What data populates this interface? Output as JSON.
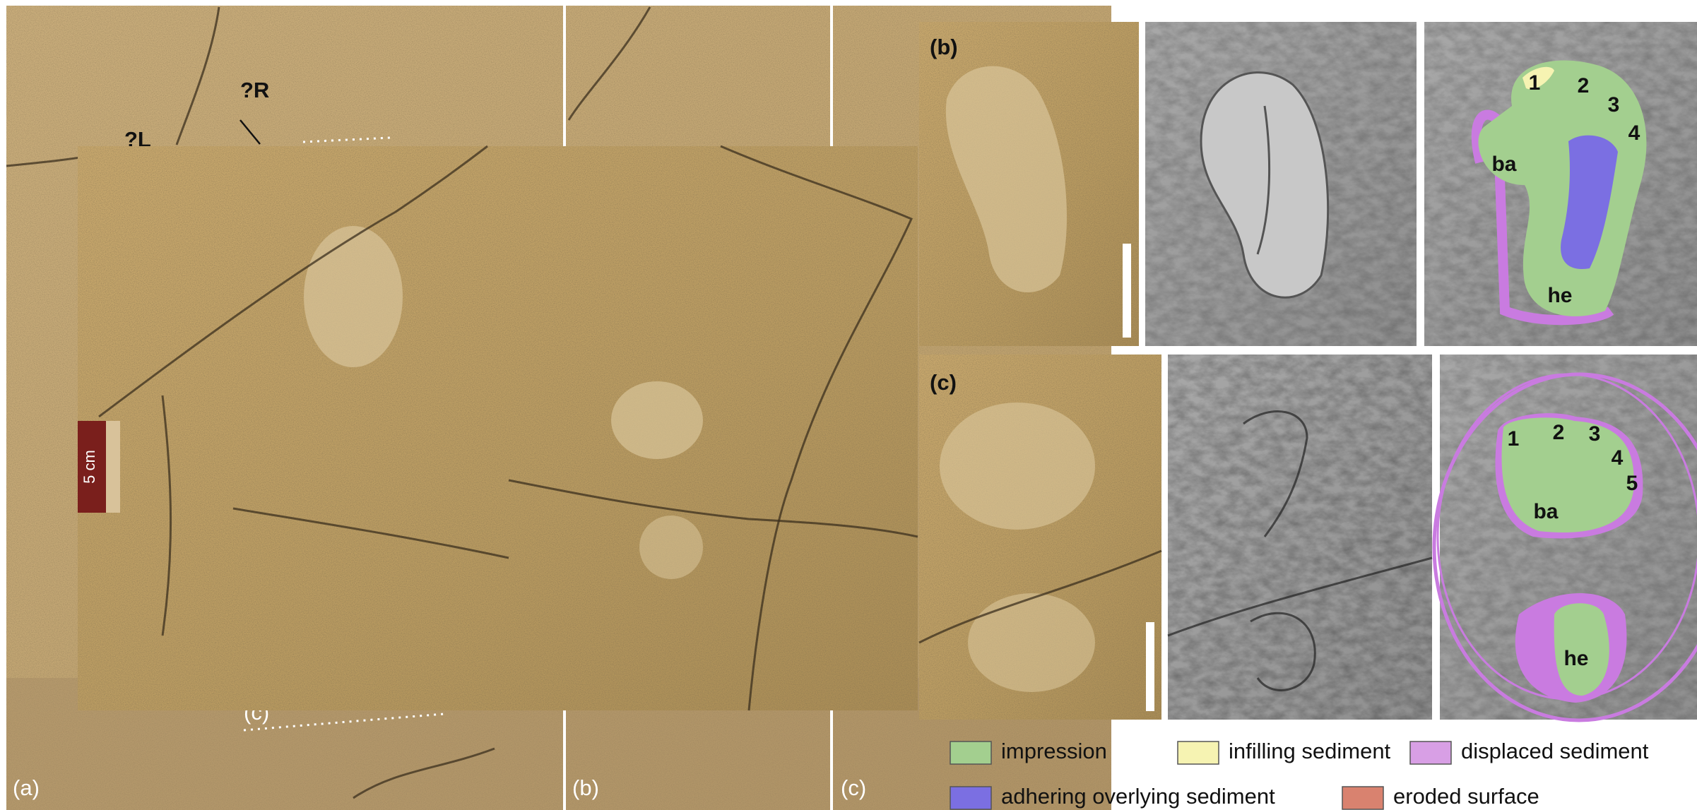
{
  "panel_a": {
    "annotations": {
      "right": "?R",
      "left": "?L",
      "cut": "(c)"
    },
    "scale_bar": "5 cm"
  },
  "background_labels": [
    "(a)",
    "(b)",
    "(c)"
  ],
  "panel_b": {
    "label": "(b)",
    "labels": [
      "1",
      "2",
      "3",
      "4",
      "ba",
      "he"
    ]
  },
  "panel_c": {
    "label": "(c)",
    "labels": [
      "1",
      "2",
      "3",
      "4",
      "5",
      "ba",
      "he"
    ]
  },
  "legend": [
    {
      "label": "impression",
      "color": "#a3cf8f"
    },
    {
      "label": "infilling sediment",
      "color": "#f6f3b2"
    },
    {
      "label": "displaced sediment",
      "color": "#d89fe5"
    },
    {
      "label": "adhering overlying sediment",
      "color": "#7b6fe2"
    },
    {
      "label": "eroded surface",
      "color": "#d9826f"
    }
  ]
}
